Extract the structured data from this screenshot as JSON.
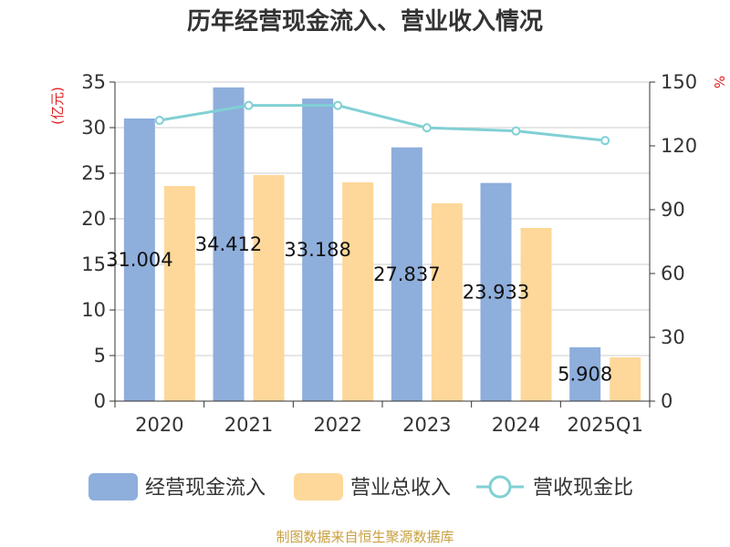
{
  "chart_data": {
    "type": "bar",
    "title": "历年经营现金流入、营业收入情况",
    "categories": [
      "2020",
      "2021",
      "2022",
      "2023",
      "2024",
      "2025Q1"
    ],
    "series": [
      {
        "name": "经营现金流入",
        "type": "bar",
        "axis": "left",
        "color": "#8eaedc",
        "values": [
          31.004,
          34.412,
          33.188,
          27.837,
          23.933,
          5.908
        ],
        "labels": [
          "31.004",
          "34.412",
          "33.188",
          "27.837",
          "23.933",
          "5.908"
        ]
      },
      {
        "name": "营业总收入",
        "type": "bar",
        "axis": "left",
        "color": "#fdd89a",
        "values": [
          23.6,
          24.8,
          24.0,
          21.7,
          19.0,
          4.8
        ]
      },
      {
        "name": "营收现金比",
        "type": "line",
        "axis": "right",
        "color": "#80d0d4",
        "values": [
          132,
          139,
          139,
          128.5,
          127,
          122.5
        ]
      }
    ],
    "y_left": {
      "label": "(亿元)",
      "min": 0,
      "max": 35,
      "ticks": [
        0,
        5,
        10,
        15,
        20,
        25,
        30,
        35
      ]
    },
    "y_right": {
      "label": "%",
      "min": 0,
      "max": 150,
      "ticks": [
        0,
        30,
        60,
        90,
        120,
        150
      ]
    },
    "grid": true,
    "legend_position": "bottom"
  },
  "source": "制图数据来自恒生聚源数据库"
}
